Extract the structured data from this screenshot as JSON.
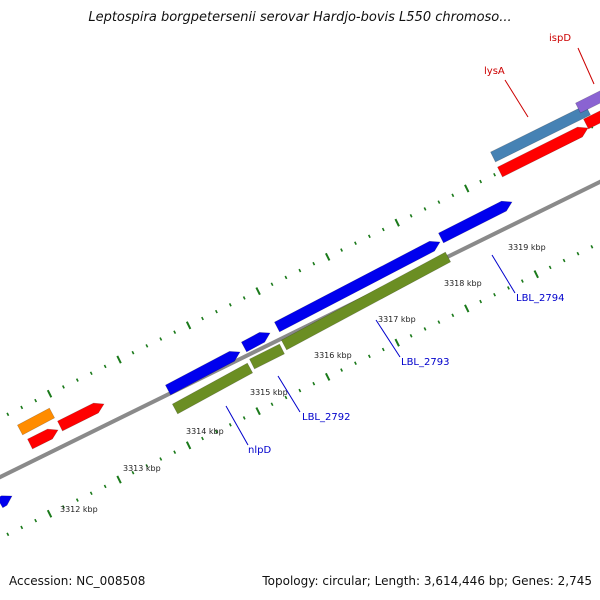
{
  "title": "Leptospira borgpetersenii serovar Hardjo-bovis L550 chromoso...",
  "footer": {
    "accession_label": "Accession: NC_008508",
    "summary": "Topology: circular; Length: 3,614,446 bp; Genes: 2,745"
  },
  "colors": {
    "backbone": "#8a8a8a",
    "forward_cds": "#0000ee",
    "reverse_cds": "#ff0000",
    "olive": "#6b8e23",
    "steel": "#4682b4",
    "orange": "#ff8c00",
    "purple": "#8a63d2",
    "tick": "#1b7a1b",
    "label_blue": "#0000cc",
    "label_red": "#cc0000"
  },
  "kbp_labels": [
    {
      "text": "3312 kbp"
    },
    {
      "text": "3313 kbp"
    },
    {
      "text": "3314 kbp"
    },
    {
      "text": "3315 kbp"
    },
    {
      "text": "3316 kbp"
    },
    {
      "text": "3317 kbp"
    },
    {
      "text": "3318 kbp"
    },
    {
      "text": "3319 kbp"
    }
  ],
  "gene_labels": [
    {
      "name": "nlpD",
      "color": "blue"
    },
    {
      "name": "LBL_2792",
      "color": "blue"
    },
    {
      "name": "LBL_2793",
      "color": "blue"
    },
    {
      "name": "LBL_2794",
      "color": "blue"
    },
    {
      "name": "lysA",
      "color": "red"
    },
    {
      "name": "ispD",
      "color": "red"
    }
  ]
}
